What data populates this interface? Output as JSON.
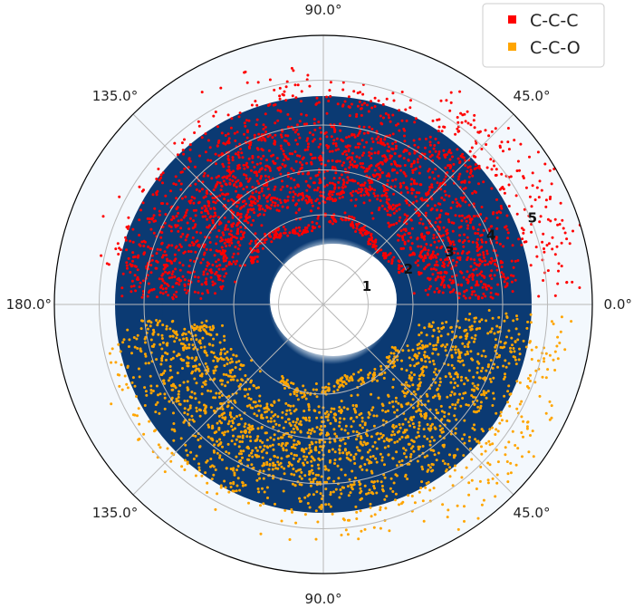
{
  "chart_data": {
    "type": "scatter",
    "projection": "polar",
    "angle_tick_labels": [
      {
        "angle": 90,
        "label": "90.0°"
      },
      {
        "angle": 45,
        "label": "45.0°"
      },
      {
        "angle": 135,
        "label": "135.0°"
      },
      {
        "angle": 180,
        "label": "180.0°"
      },
      {
        "angle": 0,
        "label": "0.0°"
      },
      {
        "angle": 225,
        "label": "135.0°"
      },
      {
        "angle": 315,
        "label": "45.0°"
      },
      {
        "angle": 270,
        "label": "90.0°"
      }
    ],
    "radial_ticks": [
      1,
      2,
      3,
      4,
      5
    ],
    "radial_tick_labels": [
      "1",
      "2",
      "3",
      "4",
      "5"
    ],
    "rlim": [
      0,
      6
    ],
    "grid": true,
    "legend_position": "top-right",
    "background": {
      "type": "density",
      "colormap": "Blues",
      "core_color": "#0b3a73",
      "core_r": [
        1.35,
        4.85
      ],
      "white_hole_r": 1.3
    },
    "series": [
      {
        "name": "C-C-C",
        "color": "#ff0000",
        "theta_range": [
          0,
          180
        ],
        "point_count": 2600,
        "bands": [
          {
            "r": 1.85,
            "width": 0.06,
            "weight": 1.0,
            "theta_range": [
              22,
              150
            ]
          },
          {
            "r": 2.55,
            "width": 0.18,
            "weight": 2.5,
            "theta_range": [
              5,
              175
            ]
          },
          {
            "r": 3.2,
            "width": 0.28,
            "weight": 3.5,
            "theta_range": [
              2,
              178
            ]
          },
          {
            "r": 3.85,
            "width": 0.3,
            "weight": 3.0,
            "theta_range": [
              2,
              178
            ]
          },
          {
            "r": 4.55,
            "width": 0.35,
            "weight": 1.6,
            "theta_range": [
              8,
              172
            ]
          },
          {
            "r": 5.3,
            "width": 0.3,
            "weight": 0.5,
            "theta_range": [
              2,
              60
            ]
          }
        ]
      },
      {
        "name": "C-C-O",
        "color": "#ffa500",
        "theta_range": [
          180,
          360
        ],
        "point_count": 2200,
        "bands": [
          {
            "r": 1.9,
            "width": 0.07,
            "weight": 0.8,
            "theta_range": [
              240,
              330
            ]
          },
          {
            "r": 2.6,
            "width": 0.18,
            "weight": 2.0,
            "theta_range": [
              188,
              352
            ]
          },
          {
            "r": 3.25,
            "width": 0.25,
            "weight": 3.0,
            "theta_range": [
              190,
              355
            ]
          },
          {
            "r": 3.9,
            "width": 0.3,
            "weight": 3.0,
            "theta_range": [
              185,
              358
            ]
          },
          {
            "r": 4.6,
            "width": 0.3,
            "weight": 1.5,
            "theta_range": [
              190,
              350
            ]
          },
          {
            "r": 5.3,
            "width": 0.3,
            "weight": 0.4,
            "theta_range": [
              300,
              358
            ]
          }
        ]
      }
    ]
  }
}
